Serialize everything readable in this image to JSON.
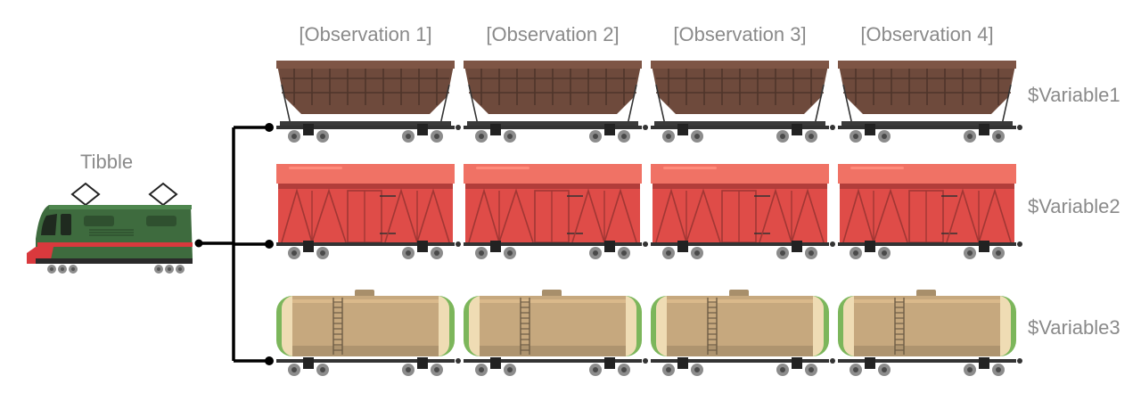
{
  "title": "Tibble",
  "observations": [
    "[Observation 1]",
    "[Observation 2]",
    "[Observation 3]",
    "[Observation 4]"
  ],
  "variables": [
    "$Variable1",
    "$Variable2",
    "$Variable3"
  ],
  "row_types": [
    "hopper-wagon",
    "boxcar-wagon",
    "tank-wagon"
  ],
  "colors": {
    "label": "#8a8a8a",
    "connector": "#000000",
    "hopper": "#6e4a3c",
    "boxcar": "#df4c48",
    "boxcar_roof": "#f07265",
    "tank": "#c6a87e",
    "tank_cap": "#efdcb4",
    "tank_end": "#7cb65b",
    "locomotive": "#3e6b3e",
    "locomotive_stripe": "#d9393d",
    "rail": "#333333",
    "wheel": "#8c8c8c"
  }
}
